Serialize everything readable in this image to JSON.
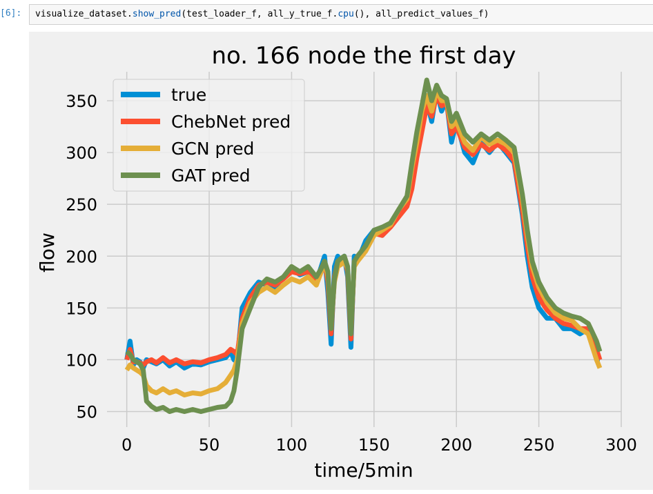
{
  "cell": {
    "prompt": "[6]:",
    "code_parts": [
      {
        "text": "visualize_dataset.",
        "kind": "plain"
      },
      {
        "text": "show_pred",
        "kind": "fn"
      },
      {
        "text": "(test_loader_f, all_y_true_f.",
        "kind": "plain"
      },
      {
        "text": "cpu",
        "kind": "fn"
      },
      {
        "text": "(), all_predict_values_f)",
        "kind": "plain"
      }
    ]
  },
  "chart_data": {
    "type": "line",
    "title": "no. 166 node the first day",
    "xlabel": "time/5min",
    "ylabel": "flow",
    "xlim": [
      -12,
      300
    ],
    "ylim": [
      35,
      378
    ],
    "xticks": [
      0,
      50,
      100,
      150,
      200,
      250,
      300
    ],
    "yticks": [
      50,
      100,
      150,
      200,
      250,
      300,
      350
    ],
    "grid": true,
    "legend_position": "upper-left",
    "x": [
      0,
      2,
      4,
      6,
      8,
      10,
      12,
      15,
      18,
      22,
      26,
      30,
      35,
      40,
      45,
      50,
      55,
      60,
      63,
      65,
      67,
      70,
      75,
      80,
      85,
      90,
      95,
      100,
      105,
      110,
      115,
      118,
      120,
      122,
      124,
      126,
      128,
      130,
      132,
      134,
      136,
      138,
      140,
      145,
      150,
      155,
      160,
      165,
      170,
      173,
      176,
      179,
      182,
      185,
      188,
      191,
      194,
      197,
      200,
      205,
      210,
      215,
      220,
      225,
      230,
      235,
      240,
      243,
      246,
      250,
      255,
      260,
      265,
      270,
      275,
      280,
      285,
      287
    ],
    "series": [
      {
        "name": "true",
        "color": "#008fd5",
        "values": [
          100,
          118,
          95,
          100,
          98,
          92,
          100,
          98,
          96,
          100,
          94,
          98,
          92,
          96,
          95,
          98,
          100,
          102,
          108,
          100,
          98,
          150,
          165,
          175,
          172,
          170,
          180,
          188,
          182,
          185,
          175,
          190,
          200,
          165,
          115,
          190,
          200,
          195,
          200,
          180,
          112,
          200,
          195,
          215,
          225,
          220,
          230,
          240,
          250,
          270,
          300,
          330,
          350,
          330,
          360,
          340,
          350,
          310,
          330,
          300,
          290,
          310,
          300,
          310,
          300,
          290,
          240,
          200,
          170,
          150,
          140,
          140,
          130,
          130,
          125,
          130,
          100,
          100
        ]
      },
      {
        "name": "ChebNet pred",
        "color": "#fc4f30",
        "values": [
          100,
          110,
          98,
          98,
          97,
          95,
          98,
          100,
          97,
          102,
          97,
          100,
          96,
          98,
          97,
          100,
          102,
          105,
          110,
          108,
          105,
          140,
          160,
          172,
          175,
          172,
          178,
          185,
          183,
          185,
          178,
          188,
          195,
          175,
          125,
          180,
          195,
          195,
          198,
          185,
          120,
          195,
          198,
          210,
          222,
          220,
          228,
          238,
          248,
          265,
          295,
          320,
          345,
          335,
          355,
          345,
          348,
          318,
          325,
          305,
          298,
          308,
          302,
          308,
          302,
          292,
          245,
          210,
          180,
          160,
          148,
          140,
          135,
          133,
          130,
          130,
          110,
          100
        ]
      },
      {
        "name": "GCN pred",
        "color": "#e5ae38",
        "values": [
          90,
          95,
          92,
          90,
          88,
          85,
          75,
          70,
          68,
          72,
          68,
          70,
          66,
          68,
          67,
          70,
          72,
          78,
          85,
          90,
          100,
          135,
          155,
          165,
          170,
          165,
          172,
          178,
          175,
          180,
          172,
          185,
          195,
          180,
          135,
          175,
          190,
          192,
          195,
          188,
          130,
          190,
          195,
          205,
          220,
          225,
          230,
          245,
          255,
          285,
          310,
          340,
          355,
          340,
          360,
          350,
          350,
          325,
          330,
          310,
          302,
          315,
          308,
          312,
          308,
          300,
          255,
          220,
          190,
          170,
          155,
          145,
          140,
          138,
          130,
          125,
          100,
          92
        ]
      },
      {
        "name": "GAT pred",
        "color": "#6d904f",
        "values": [
          108,
          105,
          100,
          98,
          96,
          90,
          60,
          55,
          52,
          54,
          50,
          52,
          50,
          52,
          50,
          52,
          54,
          55,
          60,
          70,
          90,
          130,
          150,
          170,
          178,
          175,
          180,
          190,
          185,
          190,
          180,
          188,
          195,
          185,
          130,
          178,
          195,
          198,
          200,
          190,
          125,
          195,
          200,
          210,
          225,
          228,
          232,
          245,
          258,
          290,
          320,
          345,
          370,
          350,
          365,
          355,
          352,
          330,
          338,
          318,
          310,
          318,
          312,
          318,
          312,
          305,
          260,
          225,
          195,
          175,
          160,
          150,
          145,
          142,
          140,
          135,
          118,
          108
        ]
      }
    ]
  }
}
